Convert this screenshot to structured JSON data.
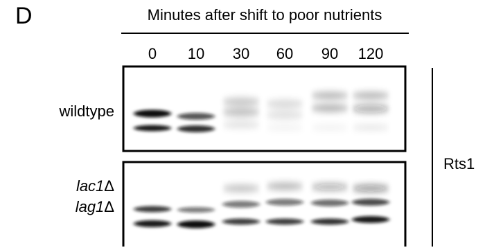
{
  "panel_label": "D",
  "header": "Minutes after shift to poor nutrients",
  "lanes": [
    "0",
    "10",
    "30",
    "60",
    "90",
    "120"
  ],
  "rows": {
    "wildtype": "wildtype",
    "mutant": [
      {
        "gene": "lac1",
        "suffix": "Δ"
      },
      {
        "gene": "lag1",
        "suffix": "Δ"
      }
    ]
  },
  "protein": "Rts1"
}
